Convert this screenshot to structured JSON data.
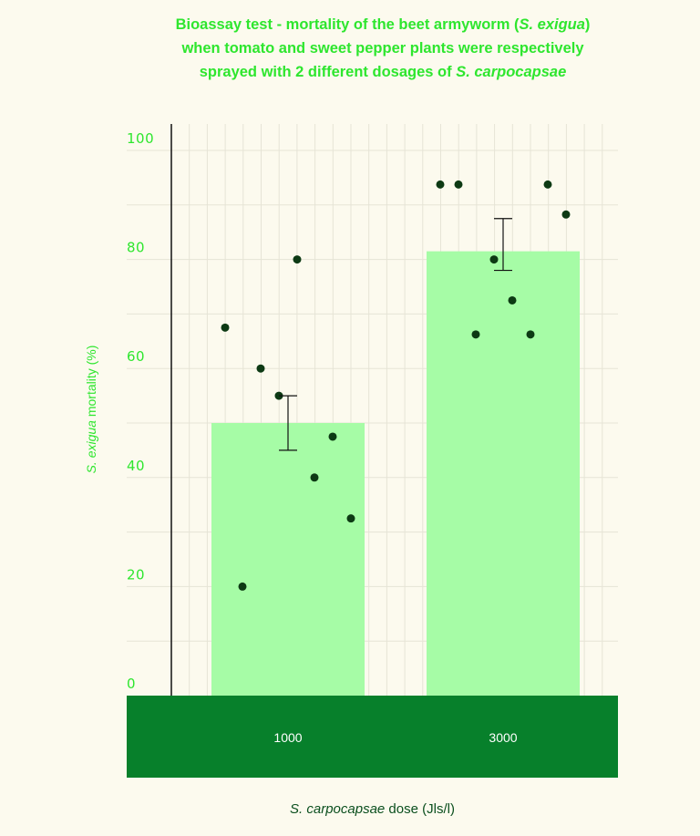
{
  "chart_data": {
    "type": "bar",
    "title_parts": [
      "Bioassay test - mortality of the beet armyworm (",
      "S. exigua",
      ")",
      "when tomato and sweet pepper plants were respectively",
      "sprayed with 2 different dosages of ",
      "S. carpocapsae"
    ],
    "xlabel_parts": [
      "S. carpocapsae",
      " dose (Jls/l)"
    ],
    "ylabel_parts": [
      "S. exigua",
      " mortality (%)"
    ],
    "categories": [
      "1000",
      "3000"
    ],
    "values": [
      50,
      81.5
    ],
    "error": [
      [
        45,
        55
      ],
      [
        78,
        87.5
      ]
    ],
    "points": [
      [
        67.5,
        20,
        60,
        55,
        80,
        40,
        47.5,
        32.5
      ],
      [
        93.75,
        93.75,
        66.25,
        80,
        72.5,
        66.25,
        93.75,
        88.25
      ]
    ],
    "ylim": [
      0,
      100
    ],
    "yticks": [
      "0",
      "20",
      "40",
      "60",
      "80",
      "100"
    ],
    "grid": true,
    "colors": {
      "bar": "#a6fca6",
      "axis_band": "#07802b",
      "point": "#0d3a14",
      "title": "#2ee62e",
      "grid": "#e6e4d6"
    }
  }
}
